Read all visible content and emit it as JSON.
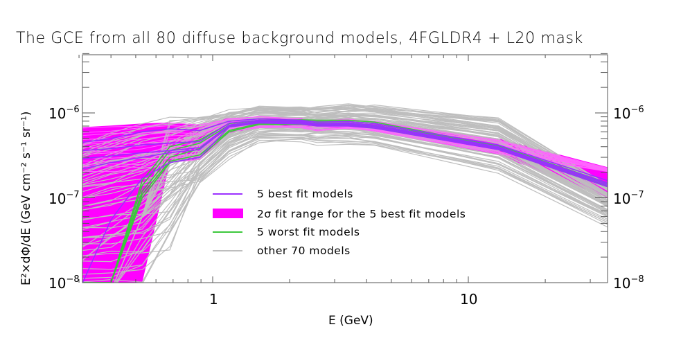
{
  "chart_data": {
    "type": "line",
    "title": "The GCE from all 80 diffuse background models, 4FGLDR4 + L20 mask",
    "xlabel": "E (GeV)",
    "ylabel": "E²×dΦ/dE (GeV cm⁻² s⁻¹ sr⁻¹)",
    "xscale": "log",
    "yscale": "log",
    "xlim": [
      0.3,
      35
    ],
    "ylim": [
      1e-08,
      5e-06
    ],
    "x_ticks": [
      {
        "value": 1,
        "label": "1"
      },
      {
        "value": 10,
        "label": "10"
      }
    ],
    "y_ticks": [
      {
        "value": 1e-08,
        "base": "10",
        "exp": "−8"
      },
      {
        "value": 1e-07,
        "base": "10",
        "exp": "−7"
      },
      {
        "value": 1e-06,
        "base": "10",
        "exp": "−6"
      }
    ],
    "grid": false,
    "legend_position": "inside-lower-center",
    "x": [
      0.31,
      0.4,
      0.53,
      0.68,
      0.89,
      1.16,
      1.52,
      2.22,
      2.56,
      3.4,
      4.3,
      13.1,
      35
    ],
    "series": [
      {
        "name": "5 best fit models",
        "color": "#9b30ff",
        "style": "line",
        "count": 5,
        "values": [
          [
            4.5e-07,
            5e-07,
            6e-07,
            6.5e-07,
            6.2e-07,
            8e-07,
            8.5e-07,
            8.2e-07,
            7.8e-07,
            7.9e-07,
            7.5e-07,
            4.2e-07,
            1.6e-07
          ],
          [
            3.6e-07,
            3.8e-07,
            4.2e-07,
            4.4e-07,
            4.6e-07,
            7.6e-07,
            8.2e-07,
            8e-07,
            7.5e-07,
            7.6e-07,
            7.2e-07,
            4e-07,
            1.5e-07
          ],
          [
            2.9e-07,
            3.1e-07,
            3.4e-07,
            3.6e-07,
            3.9e-07,
            7.2e-07,
            8e-07,
            7.8e-07,
            7.3e-07,
            7.4e-07,
            7e-07,
            3.9e-07,
            1.45e-07
          ],
          [
            2.2e-07,
            2.6e-07,
            3e-07,
            3.4e-07,
            3.7e-07,
            7e-07,
            7.8e-07,
            7.6e-07,
            7.1e-07,
            7.2e-07,
            6.8e-07,
            3.8e-07,
            1.4e-07
          ],
          [
            1e-08,
            5.5e-08,
            1.7e-07,
            2.6e-07,
            3e-07,
            6.8e-07,
            7.6e-07,
            7.4e-07,
            7e-07,
            7e-07,
            6.6e-07,
            3.7e-07,
            1.35e-07
          ]
        ]
      },
      {
        "name": "2σ fit range for the 5 best fit models",
        "color": "#ff00ff",
        "style": "band",
        "upper": [
          6.8e-07,
          7.1e-07,
          7.5e-07,
          7.7e-07,
          7.3e-07,
          8.8e-07,
          9e-07,
          8.7e-07,
          8.3e-07,
          8.4e-07,
          8e-07,
          5e-07,
          2.3e-07
        ],
        "lower": [
          1e-08,
          1e-08,
          1e-08,
          2.6e-07,
          2.8e-07,
          5.8e-07,
          6.6e-07,
          6.6e-07,
          6.2e-07,
          6.4e-07,
          6e-07,
          3.2e-07,
          1e-07
        ]
      },
      {
        "name": "5 worst fit models",
        "color": "#3cc83c",
        "style": "line",
        "count": 5,
        "values": [
          [
            1e-08,
            1e-08,
            1.6e-07,
            4e-07,
            4.8e-07,
            7.5e-07,
            8.2e-07,
            8.3e-07,
            8.2e-07,
            8.2e-07,
            7.8e-07,
            4.1e-07,
            1.5e-07
          ],
          [
            1e-08,
            1e-08,
            1.4e-07,
            3.6e-07,
            4.4e-07,
            7.2e-07,
            8e-07,
            8e-07,
            7.9e-07,
            7.9e-07,
            7.5e-07,
            4e-07,
            1.45e-07
          ],
          [
            1e-08,
            1e-08,
            1.2e-07,
            3e-07,
            3.8e-07,
            6.8e-07,
            7.8e-07,
            7.8e-07,
            7.6e-07,
            7.6e-07,
            7.2e-07,
            3.9e-07,
            1.4e-07
          ],
          [
            1e-08,
            1e-08,
            1.1e-07,
            2.7e-07,
            3.2e-07,
            6.2e-07,
            7.5e-07,
            7.5e-07,
            7.3e-07,
            7.3e-07,
            7e-07,
            3.8e-07,
            1.38e-07
          ],
          [
            1e-08,
            1e-08,
            1e-07,
            2.6e-07,
            3e-07,
            6e-07,
            7.3e-07,
            7.3e-07,
            7.1e-07,
            7.1e-07,
            6.8e-07,
            3.7e-07,
            1.35e-07
          ]
        ]
      },
      {
        "name": "other 70 models",
        "color": "#bebebe",
        "style": "line",
        "count": 70,
        "envelope_upper": [
          4.5e-07,
          6e-07,
          7.8e-07,
          8.5e-07,
          9e-07,
          1.05e-06,
          1.2e-06,
          1.15e-06,
          1.18e-06,
          1.2e-06,
          1.2e-06,
          8.5e-07,
          1.4e-07
        ],
        "envelope_lower": [
          1e-08,
          1e-08,
          1e-08,
          1e-08,
          1e-08,
          3e-07,
          4.5e-07,
          4.5e-07,
          4.2e-07,
          4.4e-07,
          4e-07,
          1.9e-07,
          4.8e-08
        ]
      }
    ]
  },
  "legend": {
    "items": [
      {
        "label": "5 best fit models",
        "swatch": "line",
        "color": "#9b30ff"
      },
      {
        "label": "2σ fit range for the 5 best fit models",
        "swatch": "box",
        "color": "#ff00ff"
      },
      {
        "label": "5 worst fit models",
        "swatch": "line",
        "color": "#3cc83c"
      },
      {
        "label": "other 70 models",
        "swatch": "line",
        "color": "#bebebe"
      }
    ]
  }
}
